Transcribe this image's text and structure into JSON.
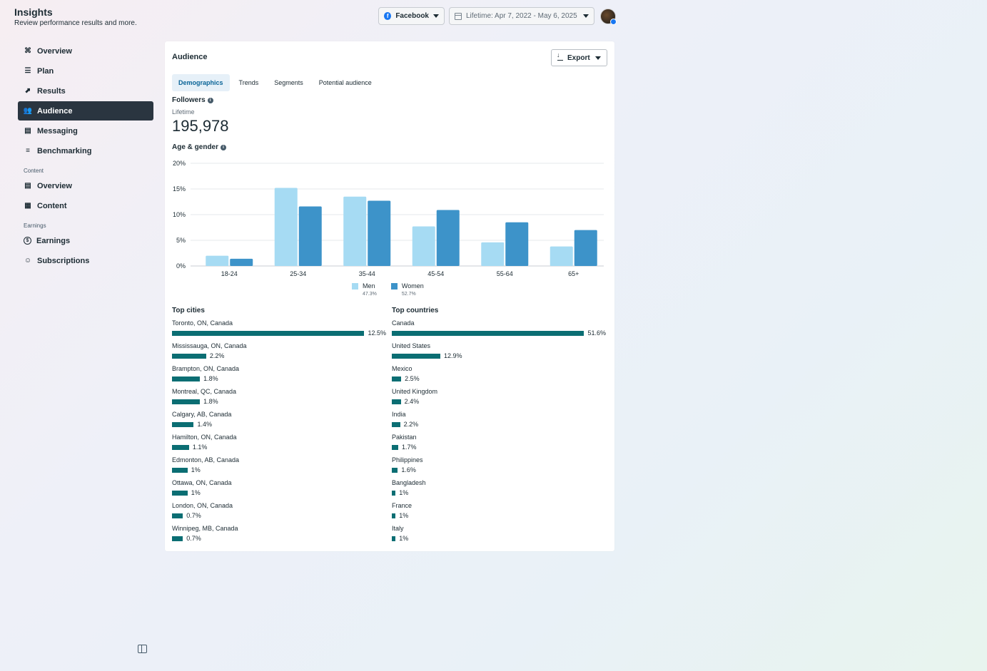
{
  "header": {
    "title": "Insights",
    "subtitle": "Review performance results and more."
  },
  "top_controls": {
    "platform": "Facebook",
    "date_range": "Lifetime: Apr 7, 2022 - May 6, 2025"
  },
  "sidebar": {
    "items": [
      {
        "label": "Overview",
        "icon": "overview-icon"
      },
      {
        "label": "Plan",
        "icon": "plan-icon"
      },
      {
        "label": "Results",
        "icon": "results-icon"
      },
      {
        "label": "Audience",
        "icon": "audience-icon",
        "active": true
      },
      {
        "label": "Messaging",
        "icon": "messaging-icon"
      },
      {
        "label": "Benchmarking",
        "icon": "benchmarking-icon"
      }
    ],
    "content_section": "Content",
    "content_items": [
      {
        "label": "Overview",
        "icon": "content-overview-icon"
      },
      {
        "label": "Content",
        "icon": "content-table-icon"
      }
    ],
    "earnings_section": "Earnings",
    "earnings_items": [
      {
        "label": "Earnings",
        "icon": "dollar-icon"
      },
      {
        "label": "Subscriptions",
        "icon": "subscriptions-icon"
      }
    ]
  },
  "card": {
    "title": "Audience",
    "export_label": "Export",
    "tabs": [
      "Demographics",
      "Trends",
      "Segments",
      "Potential audience"
    ],
    "followers_label": "Followers",
    "lifetime_label": "Lifetime",
    "followers_count": "195,978",
    "age_gender_label": "Age & gender"
  },
  "colors": {
    "men": "#a6dbf3",
    "women": "#3d93c9",
    "bar": "#0b6e73",
    "active_nav": "#2a3540"
  },
  "chart_data": {
    "type": "bar",
    "categories": [
      "18-24",
      "25-34",
      "35-44",
      "45-54",
      "55-64",
      "65+"
    ],
    "series": [
      {
        "name": "Men",
        "values": [
          2.0,
          15.2,
          13.5,
          7.7,
          4.6,
          3.8
        ]
      },
      {
        "name": "Women",
        "values": [
          1.4,
          11.6,
          12.7,
          10.9,
          8.5,
          7.0
        ]
      }
    ],
    "ylim": [
      0,
      20
    ],
    "yticks": [
      "0%",
      "5%",
      "10%",
      "15%",
      "20%"
    ],
    "legend": [
      {
        "name": "Men",
        "share": "47.3%"
      },
      {
        "name": "Women",
        "share": "52.7%"
      }
    ],
    "grid": true,
    "legend_position": "bottom"
  },
  "top_cities": {
    "title": "Top cities",
    "items": [
      {
        "name": "Toronto, ON, Canada",
        "pct": "12.5%",
        "value": 12.5
      },
      {
        "name": "Mississauga, ON, Canada",
        "pct": "2.2%",
        "value": 2.2
      },
      {
        "name": "Brampton, ON, Canada",
        "pct": "1.8%",
        "value": 1.8
      },
      {
        "name": "Montreal, QC, Canada",
        "pct": "1.8%",
        "value": 1.8
      },
      {
        "name": "Calgary, AB, Canada",
        "pct": "1.4%",
        "value": 1.4
      },
      {
        "name": "Hamilton, ON, Canada",
        "pct": "1.1%",
        "value": 1.1
      },
      {
        "name": "Edmonton, AB, Canada",
        "pct": "1%",
        "value": 1.0
      },
      {
        "name": "Ottawa, ON, Canada",
        "pct": "1%",
        "value": 1.0
      },
      {
        "name": "London, ON, Canada",
        "pct": "0.7%",
        "value": 0.7
      },
      {
        "name": "Winnipeg, MB, Canada",
        "pct": "0.7%",
        "value": 0.7
      }
    ]
  },
  "top_countries": {
    "title": "Top countries",
    "items": [
      {
        "name": "Canada",
        "pct": "51.6%",
        "value": 51.6
      },
      {
        "name": "United States",
        "pct": "12.9%",
        "value": 12.9
      },
      {
        "name": "Mexico",
        "pct": "2.5%",
        "value": 2.5
      },
      {
        "name": "United Kingdom",
        "pct": "2.4%",
        "value": 2.4
      },
      {
        "name": "India",
        "pct": "2.2%",
        "value": 2.2
      },
      {
        "name": "Pakistan",
        "pct": "1.7%",
        "value": 1.7
      },
      {
        "name": "Philippines",
        "pct": "1.6%",
        "value": 1.6
      },
      {
        "name": "Bangladesh",
        "pct": "1%",
        "value": 1.0
      },
      {
        "name": "France",
        "pct": "1%",
        "value": 1.0
      },
      {
        "name": "Italy",
        "pct": "1%",
        "value": 1.0
      }
    ]
  }
}
